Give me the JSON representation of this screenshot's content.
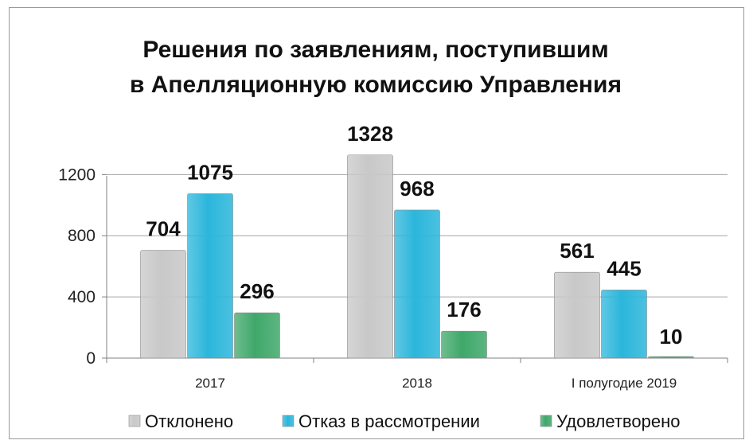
{
  "chart_data": {
    "type": "bar",
    "title_lines": [
      "Решения по заявлениям, поступившим",
      "в Апелляционную комиссию Управления"
    ],
    "categories": [
      "2017",
      "2018",
      "I полугодие 2019"
    ],
    "series": [
      {
        "name": "Отклонено",
        "values": [
          704,
          1328,
          561
        ],
        "color": "#c8c8c8"
      },
      {
        "name": "Отказ в рассмотрении",
        "values": [
          1075,
          968,
          445
        ],
        "color": "#2bb6db"
      },
      {
        "name": "Удовлетворено",
        "values": [
          296,
          176,
          10
        ],
        "color": "#3fa86a"
      }
    ],
    "ylim": [
      0,
      1400
    ],
    "yticks": [
      0,
      400,
      800,
      1200
    ],
    "grid": true,
    "legend_position": "bottom"
  }
}
